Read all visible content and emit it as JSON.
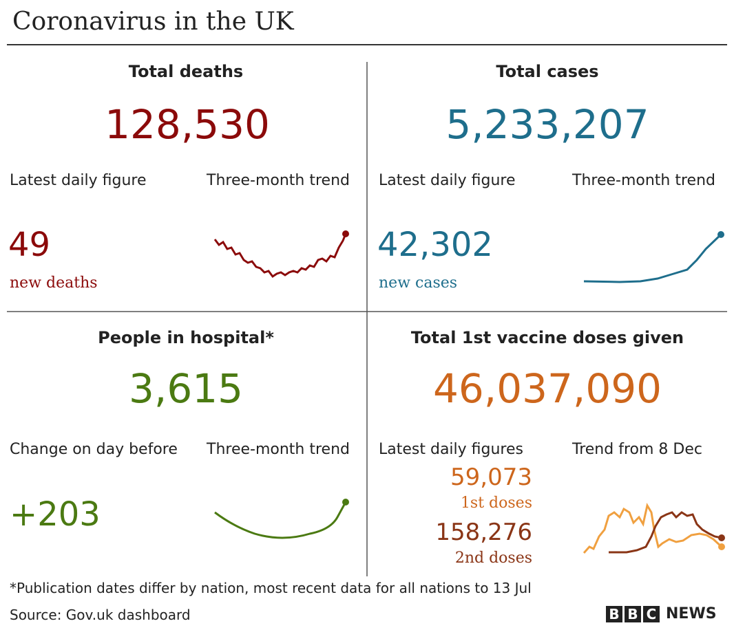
{
  "header": {
    "title": "Coronavirus in the UK"
  },
  "panels": [
    {
      "title": "Total deaths",
      "total": "128,530",
      "left_label": "Latest daily figure",
      "right_label": "Three-month trend",
      "figure": "49",
      "figure_note": "new deaths"
    },
    {
      "title": "Total cases",
      "total": "5,233,207",
      "left_label": "Latest daily figure",
      "right_label": "Three-month trend",
      "figure": "42,302",
      "figure_note": "new cases"
    },
    {
      "title": "People in hospital*",
      "total": "3,615",
      "left_label": "Change on day before",
      "right_label": "Three-month trend",
      "figure": "+203"
    },
    {
      "title": "Total 1st vaccine doses given",
      "total": "46,037,090",
      "left_label": "Latest daily figures",
      "right_label": "Trend from 8 Dec",
      "figures": [
        {
          "figure": "59,073",
          "figure_note": "1st doses"
        },
        {
          "figure": "158,276",
          "figure_note": "2nd doses"
        }
      ]
    }
  ],
  "footnote": "*Publication dates differ by nation, most recent data for all nations to 13 Jul",
  "source": "Source: Gov.uk dashboard",
  "logo": {
    "letters": [
      "B",
      "B",
      "C"
    ],
    "text": "NEWS"
  }
}
